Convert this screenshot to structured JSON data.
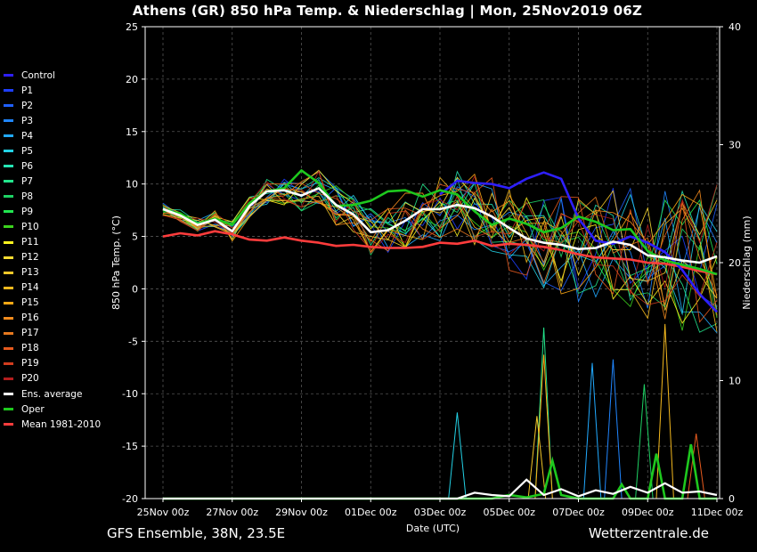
{
  "header": {
    "title": "Athens  (GR)  850 hPa Temp. & Niederschlag | Mon, 25Nov2019 06Z"
  },
  "footer": {
    "left": "GFS Ensemble, 38N, 23.5E",
    "right": "Wetterzentrale.de"
  },
  "chart_data": {
    "type": "line",
    "title": "Athens  (GR)  850 hPa Temp. & Niederschlag | Mon, 25Nov2019 06Z",
    "xlabel": "Date (UTC)",
    "ylabel": "850 hPa Temp. (°C)",
    "y2label": "Niederschlag (mm)",
    "x_ticks": [
      "25Nov 00z",
      "27Nov 00z",
      "29Nov 00z",
      "01Dec 00z",
      "03Dec 00z",
      "05Dec 00z",
      "07Dec 00z",
      "09Dec 00z",
      "11Dec 00z"
    ],
    "y_ticks": [
      "25",
      "20",
      "15",
      "10",
      "5",
      "0",
      "-5",
      "-10",
      "-15",
      "-20"
    ],
    "y2_ticks": [
      "40",
      "30",
      "20",
      "10",
      "0"
    ],
    "ylim": [
      -20,
      25
    ],
    "y2lim": [
      0,
      40
    ],
    "xlim_days": [
      0,
      16
    ],
    "grid": true,
    "legend_position": "left",
    "legend": [
      {
        "name": "Control",
        "color": "#2e1fff"
      },
      {
        "name": "P1",
        "color": "#1e3fff"
      },
      {
        "name": "P2",
        "color": "#1f60ff"
      },
      {
        "name": "P3",
        "color": "#2086ff"
      },
      {
        "name": "P4",
        "color": "#21aaff"
      },
      {
        "name": "P5",
        "color": "#23d2e6"
      },
      {
        "name": "P6",
        "color": "#25e6b4"
      },
      {
        "name": "P7",
        "color": "#23e68c"
      },
      {
        "name": "P8",
        "color": "#1ed264"
      },
      {
        "name": "P9",
        "color": "#21e650"
      },
      {
        "name": "P10",
        "color": "#3cd21e"
      },
      {
        "name": "P11",
        "color": "#fff51e"
      },
      {
        "name": "P12",
        "color": "#fadc32"
      },
      {
        "name": "P13",
        "color": "#f5c828"
      },
      {
        "name": "P14",
        "color": "#f5b91e"
      },
      {
        "name": "P15",
        "color": "#ffa814"
      },
      {
        "name": "P16",
        "color": "#f58c1e"
      },
      {
        "name": "P17",
        "color": "#e6781e"
      },
      {
        "name": "P18",
        "color": "#e65a1e"
      },
      {
        "name": "P19",
        "color": "#d23c1e"
      },
      {
        "name": "P20",
        "color": "#b41e1e"
      },
      {
        "name": "Ens. average",
        "color": "#ffffff"
      },
      {
        "name": "Oper",
        "color": "#1ec81e"
      },
      {
        "name": "Mean 1981-2010",
        "color": "#ff3c3c"
      }
    ],
    "series": [
      {
        "name": "Ens. average",
        "color": "#ffffff",
        "x": [
          0,
          0.5,
          1,
          1.5,
          2,
          2.5,
          3,
          3.5,
          4,
          4.5,
          5,
          5.5,
          6,
          6.5,
          7,
          7.5,
          8,
          8.5,
          9,
          9.5,
          10,
          10.5,
          11,
          11.5,
          12,
          12.5,
          13,
          13.5,
          14,
          14.5,
          15,
          15.5,
          16
        ],
        "y": [
          7.6,
          7.0,
          6.1,
          6.6,
          5.5,
          7.9,
          9.3,
          9.4,
          8.9,
          9.6,
          8.0,
          7.1,
          5.4,
          5.6,
          6.5,
          7.6,
          7.6,
          8.0,
          7.7,
          6.9,
          5.8,
          4.8,
          4.4,
          4.2,
          3.8,
          3.9,
          4.5,
          4.2,
          3.2,
          3.0,
          2.7,
          2.5,
          3.1
        ]
      },
      {
        "name": "Oper",
        "color": "#1ec81e",
        "x": [
          0,
          0.5,
          1,
          1.5,
          2,
          2.5,
          3,
          3.5,
          4,
          4.5,
          5,
          5.5,
          6,
          6.5,
          7,
          7.5,
          8,
          8.5,
          9,
          9.5,
          10,
          10.5,
          11,
          11.5,
          12,
          12.5,
          13,
          13.5,
          14,
          14.5,
          15,
          15.5,
          16
        ],
        "y": [
          7.5,
          7.2,
          6.2,
          6.7,
          6.1,
          8.2,
          9.3,
          9.6,
          11.3,
          10.1,
          7.9,
          8.0,
          8.4,
          9.3,
          9.4,
          8.8,
          9.4,
          9.0,
          7.4,
          6.1,
          6.7,
          6.2,
          5.4,
          5.8,
          6.9,
          6.4,
          5.6,
          5.7,
          3.6,
          2.7,
          2.3,
          1.9,
          1.4
        ]
      },
      {
        "name": "Control",
        "color": "#2e1fff",
        "x": [
          8,
          8.5,
          9,
          9.5,
          10,
          10.5,
          11,
          11.5,
          12,
          12.5,
          13,
          13.5,
          14,
          14.5,
          15,
          15.5,
          16
        ],
        "y": [
          9.0,
          10.3,
          10.1,
          10.0,
          9.6,
          10.5,
          11.1,
          10.5,
          6.7,
          4.6,
          4.3,
          5.0,
          4.4,
          3.5,
          1.8,
          -0.5,
          -2.2
        ]
      },
      {
        "name": "Mean 1981-2010",
        "color": "#ff3c3c",
        "x": [
          0,
          0.5,
          1,
          1.5,
          2,
          2.5,
          3,
          3.5,
          4,
          4.5,
          5,
          5.5,
          6,
          6.5,
          7,
          7.5,
          8,
          8.5,
          9,
          9.5,
          10,
          10.5,
          11,
          11.5,
          12,
          12.5,
          13,
          13.5,
          14,
          14.5,
          15,
          15.5,
          16
        ],
        "y": [
          5.0,
          5.3,
          5.1,
          5.5,
          5.2,
          4.7,
          4.6,
          4.9,
          4.6,
          4.4,
          4.1,
          4.2,
          4.0,
          3.9,
          3.9,
          4.0,
          4.4,
          4.3,
          4.6,
          4.1,
          4.3,
          4.2,
          4.0,
          3.7,
          3.3,
          3.0,
          2.9,
          2.8,
          2.5,
          2.4,
          2.1,
          1.7,
          1.4
        ]
      }
    ],
    "precip_series": [
      {
        "name": "Oper",
        "color": "#1ec81e",
        "x": [
          0,
          9.5,
          10,
          10.5,
          11,
          11.25,
          11.5,
          12,
          13,
          13.25,
          13.5,
          14,
          14.25,
          14.5,
          15,
          15.25,
          15.5,
          16
        ],
        "y": [
          0,
          0,
          0.3,
          0.1,
          0.4,
          3.2,
          0.3,
          0,
          0,
          1.2,
          0,
          0,
          3.8,
          0,
          0,
          4.6,
          0,
          0
        ]
      },
      {
        "name": "Ens. average",
        "color": "#ffffff",
        "x": [
          0,
          8.5,
          9,
          9.5,
          10,
          10.5,
          11,
          11.5,
          12,
          12.5,
          13,
          13.5,
          14,
          14.5,
          15,
          15.5,
          16
        ],
        "y": [
          0,
          0,
          0.5,
          0.3,
          0.2,
          1.6,
          0.3,
          0.8,
          0.2,
          0.7,
          0.4,
          1.0,
          0.5,
          1.3,
          0.5,
          0.6,
          0.3
        ]
      }
    ],
    "precip_spikes": [
      {
        "name": "P5",
        "color": "#23d2e6",
        "x": 8.5,
        "y": 7.3
      },
      {
        "name": "P7",
        "color": "#23e68c",
        "x": 11.0,
        "y": 14.5
      },
      {
        "name": "P15",
        "color": "#ffa814",
        "x": 11.0,
        "y": 12.2
      },
      {
        "name": "P13",
        "color": "#f5c828",
        "x": 10.8,
        "y": 7.0
      },
      {
        "name": "P4",
        "color": "#21aaff",
        "x": 12.4,
        "y": 11.5
      },
      {
        "name": "P3",
        "color": "#2086ff",
        "x": 13.0,
        "y": 11.8
      },
      {
        "name": "P8",
        "color": "#1ed264",
        "x": 13.9,
        "y": 9.7
      },
      {
        "name": "P14",
        "color": "#f5b91e",
        "x": 14.5,
        "y": 14.8
      },
      {
        "name": "P18",
        "color": "#e65a1e",
        "x": 15.4,
        "y": 5.5
      }
    ]
  }
}
